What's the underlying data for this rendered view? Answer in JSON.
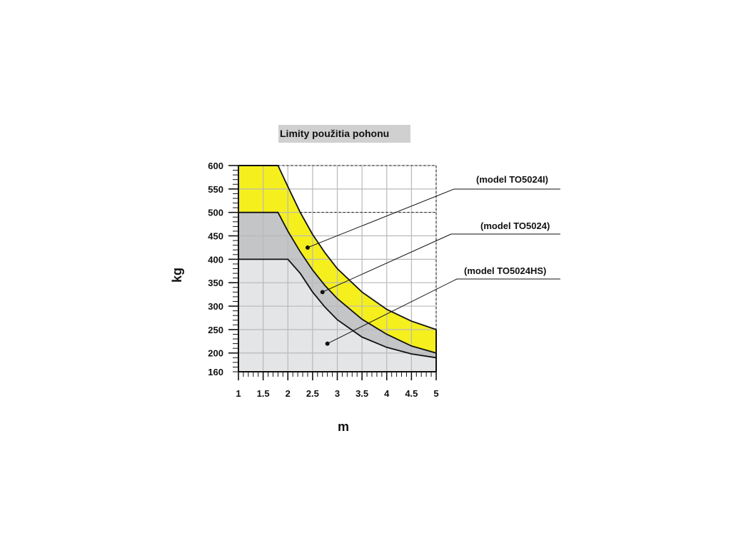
{
  "chart_data": {
    "type": "area",
    "title": "Limity použitia pohonu",
    "xlabel": "m",
    "ylabel": "kg",
    "xlim": [
      1,
      5
    ],
    "ylim": [
      160,
      600
    ],
    "x_ticks": [
      "1",
      "1.5",
      "2",
      "2.5",
      "3",
      "3.5",
      "4",
      "4.5",
      "5"
    ],
    "y_ticks": [
      "600",
      "550",
      "500",
      "450",
      "400",
      "350",
      "300",
      "250",
      "200",
      "160"
    ],
    "grid": true,
    "colors": {
      "TO5024I": "#f5ef1e",
      "TO5024": "#c4c5c7",
      "TO5024HS": "#e4e5e7",
      "grid": "#b9b9b9",
      "title_bg": "#d0d0d0"
    },
    "series": [
      {
        "name": "(model TO5024I)",
        "points": [
          [
            1,
            600
          ],
          [
            1.8,
            600
          ],
          [
            2,
            555
          ],
          [
            2.25,
            500
          ],
          [
            2.5,
            453
          ],
          [
            2.75,
            414
          ],
          [
            3,
            380
          ],
          [
            3.5,
            330
          ],
          [
            4,
            293
          ],
          [
            4.5,
            268
          ],
          [
            5,
            250
          ]
        ]
      },
      {
        "name": "(model TO5024)",
        "points": [
          [
            1,
            500
          ],
          [
            1.8,
            500
          ],
          [
            2,
            460
          ],
          [
            2.25,
            416
          ],
          [
            2.5,
            377
          ],
          [
            2.75,
            344
          ],
          [
            3,
            316
          ],
          [
            3.5,
            272
          ],
          [
            4,
            240
          ],
          [
            4.5,
            215
          ],
          [
            5,
            200
          ]
        ]
      },
      {
        "name": "(model TO5024HS)",
        "points": [
          [
            1,
            400
          ],
          [
            2,
            400
          ],
          [
            2.25,
            370
          ],
          [
            2.5,
            330
          ],
          [
            2.75,
            298
          ],
          [
            3,
            271
          ],
          [
            3.5,
            234
          ],
          [
            4,
            212
          ],
          [
            4.5,
            198
          ],
          [
            5,
            190
          ]
        ]
      }
    ],
    "annotations": [
      {
        "label": "(model TO5024I)",
        "point": [
          2.4,
          425
        ]
      },
      {
        "label": "(model TO5024)",
        "point": [
          2.7,
          330
        ]
      },
      {
        "label": "(model TO5024HS)",
        "point": [
          2.8,
          220
        ]
      }
    ]
  }
}
